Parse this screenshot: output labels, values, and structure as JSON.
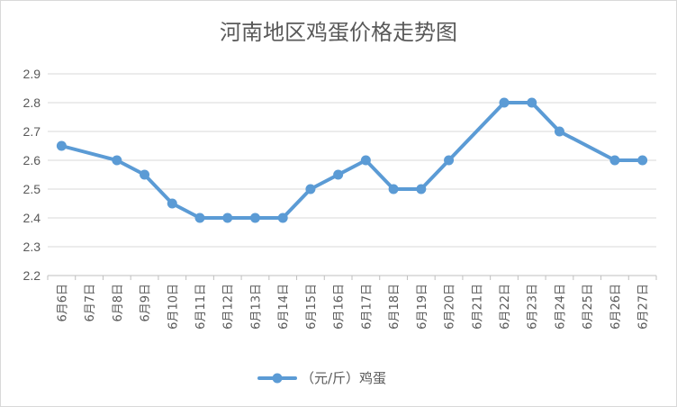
{
  "chart_data": {
    "type": "line",
    "title": "河南地区鸡蛋价格走势图",
    "categories": [
      "6月6日",
      "6月7日",
      "6月8日",
      "6月9日",
      "6月10日",
      "6月11日",
      "6月12日",
      "6月13日",
      "6月14日",
      "6月15日",
      "6月16日",
      "6月17日",
      "6月18日",
      "6月19日",
      "6月20日",
      "6月21日",
      "6月22日",
      "6月23日",
      "6月24日",
      "6月25日",
      "6月26日",
      "6月27日"
    ],
    "series": [
      {
        "name": "（元/斤）鸡蛋",
        "color": "#5b9bd5",
        "values": [
          2.65,
          null,
          2.6,
          2.55,
          2.45,
          2.4,
          2.4,
          2.4,
          2.4,
          2.5,
          2.55,
          2.6,
          2.5,
          2.5,
          2.6,
          null,
          2.8,
          2.8,
          2.7,
          null,
          2.6,
          2.6
        ]
      }
    ],
    "yticks": [
      "2.2",
      "2.3",
      "2.4",
      "2.5",
      "2.6",
      "2.7",
      "2.8",
      "2.9"
    ],
    "ylim": [
      2.2,
      2.9
    ],
    "grid": true,
    "legend": "bottom"
  }
}
